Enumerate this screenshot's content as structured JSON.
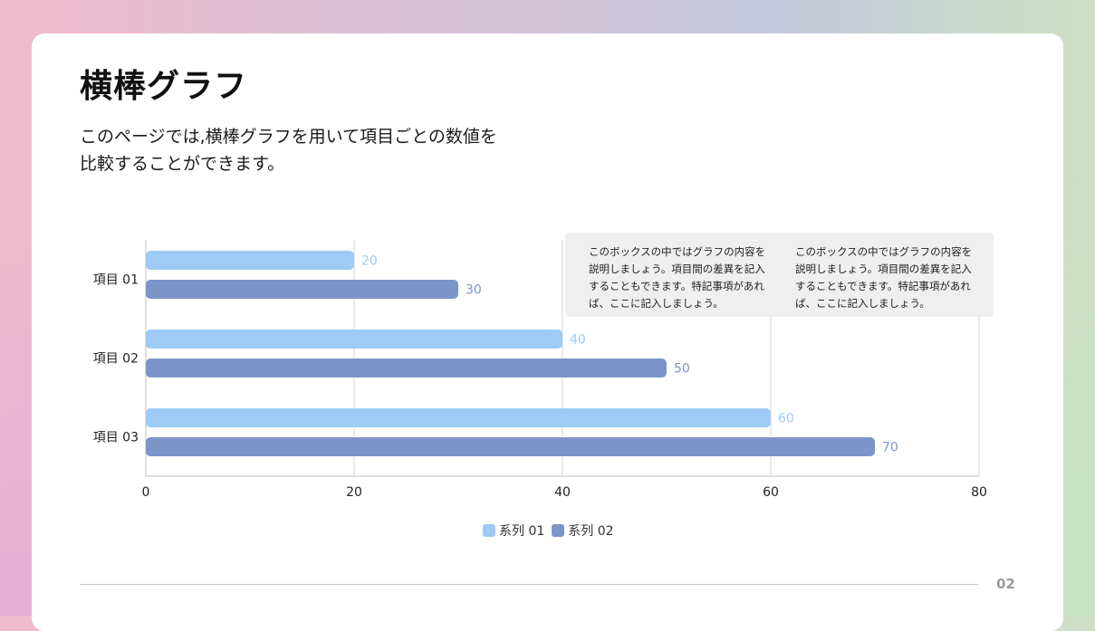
{
  "title": "横棒グラフ",
  "description_line1": "このページでは,横棒グラフを用いて項目ごとの数値を",
  "description_line2": "比較することができます。",
  "note": {
    "col1": "このボックスの中ではグラフの内容を説明しましょう。項目間の差異を記入することもできます。特記事項があれば、ここに記入しましょう。",
    "col2": "このボックスの中ではグラフの内容を説明しましょう。項目間の差異を記入することもできます。特記事項があれば、ここに記入しましょう。"
  },
  "page_number": "02",
  "colors": {
    "series1": "#9ecbf5",
    "series2": "#7b95c9",
    "grid": "#d6d6d6",
    "axis_text": "#222222"
  },
  "chart_data": {
    "type": "bar",
    "orientation": "horizontal",
    "categories": [
      "項目 01",
      "項目 02",
      "項目 03"
    ],
    "series": [
      {
        "name": "系列 01",
        "values": [
          20,
          40,
          60
        ]
      },
      {
        "name": "系列 02",
        "values": [
          30,
          50,
          70
        ]
      }
    ],
    "xlim": [
      0,
      80
    ],
    "xticks": [
      0,
      20,
      40,
      60,
      80
    ],
    "data_labels": true,
    "grid": true,
    "legend": "bottom-center"
  }
}
